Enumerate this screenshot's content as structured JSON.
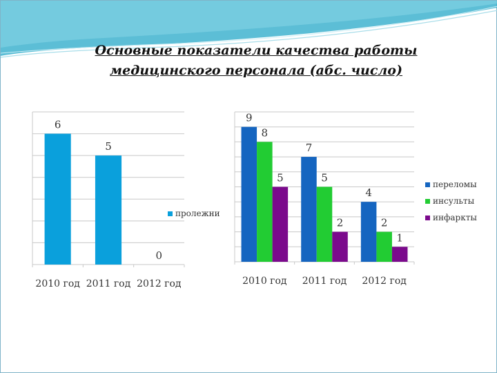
{
  "slide": {
    "title_line1": "Основные показатели качества работы",
    "title_line2": "медицинского персонала (абс. число)"
  },
  "colors": {
    "header_wave": "#3fb3cf",
    "prolezhni": "#0aa0dc",
    "perelomy": "#1565c0",
    "insulty": "#22cc33",
    "infarkty": "#7b0a8c"
  },
  "chart_data": [
    {
      "type": "bar",
      "categories": [
        "2010 год",
        "2011 год",
        "2012 год"
      ],
      "series": [
        {
          "name": "пролежни",
          "values": [
            6,
            5,
            0
          ],
          "color": "#0aa0dc"
        }
      ],
      "data_labels": [
        "6",
        "5",
        "0"
      ],
      "ylim": [
        0,
        7
      ],
      "grid": true,
      "legend": "right"
    },
    {
      "type": "bar",
      "categories": [
        "2010 год",
        "2011 год",
        "2012 год"
      ],
      "series": [
        {
          "name": "переломы",
          "values": [
            9,
            7,
            4
          ],
          "color": "#1565c0"
        },
        {
          "name": "инсульты",
          "values": [
            8,
            5,
            2
          ],
          "color": "#22cc33"
        },
        {
          "name": "инфаркты",
          "values": [
            5,
            2,
            1
          ],
          "color": "#7b0a8c"
        }
      ],
      "data_labels": [
        [
          "9",
          "7",
          "4"
        ],
        [
          "8",
          "5",
          "2"
        ],
        [
          "5",
          "2",
          "1"
        ]
      ],
      "ylim": [
        0,
        10
      ],
      "grid": true,
      "legend": "right"
    }
  ]
}
